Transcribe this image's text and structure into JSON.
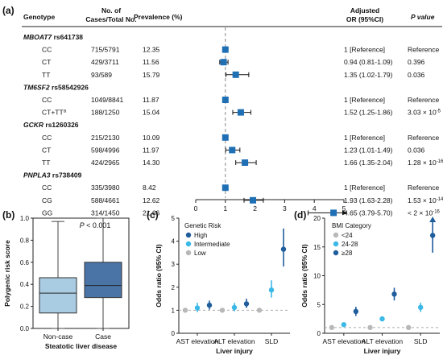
{
  "panel_a": {
    "label": "(a)",
    "headers": {
      "genotype": "Genotype",
      "cases_line1": "No. of",
      "cases_line2": "Cases/Total No.",
      "prevalence": "Prevalence (%)",
      "or_line1": "Adjusted",
      "or_line2": "OR (95%CI)",
      "pvalue": "P value"
    },
    "superscript_note": "a",
    "rows": [
      {
        "genotype": "MBOAT7 rs641738",
        "is_gene": true
      },
      {
        "genotype": "CC",
        "cases": "715/5791",
        "prevalence": "12.35",
        "or_text": "1 [Reference]",
        "p_text": "Reference"
      },
      {
        "genotype": "CT",
        "cases": "429/3711",
        "prevalence": "11.56",
        "or_text": "0.94 (0.81-1.09)",
        "p_text": "0.396"
      },
      {
        "genotype": "TT",
        "cases": "93/589",
        "prevalence": "15.79",
        "or_text": "1.35 (1.02-1.79)",
        "p_text": "0.036"
      },
      {
        "genotype": "TM6SF2 rs58542926",
        "is_gene": true
      },
      {
        "genotype": "CC",
        "cases": "1049/8841",
        "prevalence": "11.87",
        "or_text": "1 [Reference]",
        "p_text": "Reference"
      },
      {
        "genotype": "CT+TT",
        "cases": "188/1250",
        "prevalence": "15.04",
        "or_text": "1.52 (1.25-1.86)",
        "p_text": "3.03 × 10",
        "p_exp": "-5",
        "sup": true
      },
      {
        "genotype": "GCKR rs1260326",
        "is_gene": true
      },
      {
        "genotype": "CC",
        "cases": "215/2130",
        "prevalence": "10.09",
        "or_text": "1 [Reference]",
        "p_text": "Reference"
      },
      {
        "genotype": "CT",
        "cases": "598/4996",
        "prevalence": "11.97",
        "or_text": "1.23 (1.01-1.49)",
        "p_text": "0.036"
      },
      {
        "genotype": "TT",
        "cases": "424/2965",
        "prevalence": "14.30",
        "or_text": "1.66 (1.35-2.04)",
        "p_text": "1.28 × 10",
        "p_exp": "-16"
      },
      {
        "genotype": "PNPLA3 rs738409",
        "is_gene": true
      },
      {
        "genotype": "CC",
        "cases": "335/3980",
        "prevalence": "8.42",
        "or_text": "1 [Reference]",
        "p_text": "Reference"
      },
      {
        "genotype": "CG",
        "cases": "588/4661",
        "prevalence": "12.62",
        "or_text": "1.93 (1.63-2.28)",
        "p_text": "1.53 × 10",
        "p_exp": "-14"
      },
      {
        "genotype": "GG",
        "cases": "314/1450",
        "prevalence": "21.66",
        "or_text": "4.65 (3.79-5.70)",
        "p_text": "< 2 × 10",
        "p_exp": "-16"
      }
    ]
  },
  "panel_b": {
    "label": "(b)",
    "annotation": "P < 0.001"
  },
  "panel_c": {
    "label": "(c)",
    "legend_title": "Genetic Risk",
    "colors": [
      "#1f5d9c",
      "#3ab8e6",
      "#b8b8b8"
    ]
  },
  "panel_d": {
    "label": "(d)",
    "legend_title": "BMI Category",
    "colors": [
      "#b8b8b8",
      "#3ab8e6",
      "#1f5d9c"
    ]
  },
  "chart_data": [
    {
      "type": "forest",
      "panel": "a",
      "xlabel": "",
      "xlim": [
        0,
        5
      ],
      "xticks": [
        0,
        1,
        2,
        3,
        4,
        5
      ],
      "reference_line": 1,
      "marker_color": "#1f6fb5",
      "points": [
        {
          "row": 1,
          "or": 1.0,
          "lo": 1.0,
          "hi": 1.0
        },
        {
          "row": 2,
          "or": 0.94,
          "lo": 0.81,
          "hi": 1.09
        },
        {
          "row": 3,
          "or": 1.35,
          "lo": 1.02,
          "hi": 1.79
        },
        {
          "row": 5,
          "or": 1.0,
          "lo": 1.0,
          "hi": 1.0
        },
        {
          "row": 6,
          "or": 1.52,
          "lo": 1.25,
          "hi": 1.86
        },
        {
          "row": 8,
          "or": 1.0,
          "lo": 1.0,
          "hi": 1.0
        },
        {
          "row": 9,
          "or": 1.23,
          "lo": 1.01,
          "hi": 1.49
        },
        {
          "row": 10,
          "or": 1.66,
          "lo": 1.35,
          "hi": 2.04
        },
        {
          "row": 12,
          "or": 1.0,
          "lo": 1.0,
          "hi": 1.0
        },
        {
          "row": 13,
          "or": 1.93,
          "lo": 1.63,
          "hi": 2.28
        },
        {
          "row": 14,
          "or": 4.65,
          "lo": 3.79,
          "hi": 5.7,
          "arrow": true
        }
      ]
    },
    {
      "type": "box",
      "panel": "b",
      "xlabel": "Steatotic liver disease",
      "ylabel": "Polygenic risk score",
      "ylim": [
        0.0,
        1.0
      ],
      "yticks": [
        0.0,
        0.2,
        0.4,
        0.6,
        0.8,
        1.0
      ],
      "groups": [
        {
          "name": "Non-case",
          "color": "#a9cce3",
          "whisker_low": 0.0,
          "q1": 0.14,
          "median": 0.32,
          "q3": 0.46,
          "whisker_high": 0.97
        },
        {
          "name": "Case",
          "color": "#4a73a6",
          "whisker_low": 0.0,
          "q1": 0.28,
          "median": 0.39,
          "q3": 0.6,
          "whisker_high": 1.0
        }
      ]
    },
    {
      "type": "errorbar",
      "panel": "c",
      "xlabel": "Liver injury",
      "ylabel": "Odds ratio (95% CI)",
      "ylim": [
        0,
        5
      ],
      "yticks": [
        0,
        1,
        2,
        3,
        4,
        5
      ],
      "reference_line": 1,
      "categories": [
        "AST elevation",
        "ALT elevation",
        "SLD"
      ],
      "series": [
        {
          "name": "Low",
          "values": [
            1.0,
            1.0,
            1.0
          ],
          "lo": [
            1.0,
            1.0,
            1.0
          ],
          "hi": [
            1.0,
            1.0,
            1.0
          ]
        },
        {
          "name": "Intermediate",
          "values": [
            1.1,
            1.12,
            1.88
          ],
          "lo": [
            0.92,
            0.95,
            1.55
          ],
          "hi": [
            1.32,
            1.32,
            2.3
          ]
        },
        {
          "name": "High",
          "values": [
            1.22,
            1.28,
            3.65
          ],
          "lo": [
            1.03,
            1.1,
            2.9
          ],
          "hi": [
            1.42,
            1.5,
            4.55
          ]
        }
      ]
    },
    {
      "type": "errorbar",
      "panel": "d",
      "xlabel": "Liver injury",
      "ylabel": "Odds ratio (95% CI)",
      "ylim": [
        0,
        20
      ],
      "yticks": [
        0,
        5,
        10,
        15,
        20
      ],
      "reference_line": 1,
      "categories": [
        "AST elevation",
        "ALT elevation",
        "SLD"
      ],
      "series": [
        {
          "name": "<24",
          "values": [
            1.0,
            1.0,
            1.0
          ],
          "lo": [
            1.0,
            1.0,
            1.0
          ],
          "hi": [
            1.0,
            1.0,
            1.0
          ]
        },
        {
          "name": "24-28",
          "values": [
            1.5,
            2.5,
            4.5
          ],
          "lo": [
            1.3,
            2.2,
            3.7
          ],
          "hi": [
            1.8,
            2.8,
            5.3
          ]
        },
        {
          "name": "≥28",
          "values": [
            3.8,
            6.8,
            17.0
          ],
          "lo": [
            3.0,
            5.7,
            14.0
          ],
          "hi": [
            4.6,
            7.9,
            20.0
          ]
        }
      ]
    }
  ]
}
